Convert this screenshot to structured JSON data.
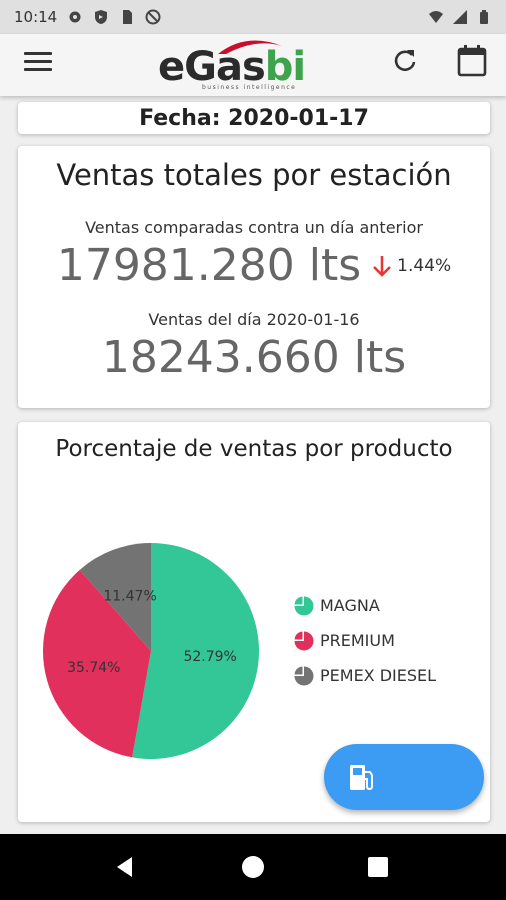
{
  "status_bar": {
    "time": "10:14",
    "left_icons": [
      "gear-icon",
      "shield-icon",
      "sim-icon",
      "dnd-icon"
    ],
    "right_icons": [
      "wifi-icon",
      "signal-icon",
      "battery-icon"
    ]
  },
  "app_bar": {
    "logo_main": "eGas",
    "logo_accent": "bi",
    "logo_tagline": "business intelligence",
    "menu_icon": "menu-icon",
    "refresh_icon": "refresh-icon",
    "calendar_icon": "calendar-icon"
  },
  "date_card": {
    "text": "Fecha: 2020-01-17"
  },
  "sales": {
    "title": "Ventas totales por estación",
    "compare_label": "Ventas comparadas contra un día anterior",
    "current_value": "17981.280 lts",
    "change_pct": "1.44%",
    "change_direction": "down",
    "prev_label": "Ventas del día 2020-01-16",
    "prev_value": "18243.660 lts"
  },
  "product_chart": {
    "title": "Porcentaje de ventas por producto"
  },
  "chart_data": {
    "type": "pie",
    "title": "Porcentaje de ventas por producto",
    "categories": [
      "MAGNA",
      "PREMIUM",
      "PEMEX DIESEL"
    ],
    "values": [
      52.79,
      35.74,
      11.47
    ],
    "labels": [
      "52.79%",
      "35.74%",
      "11.47%"
    ],
    "colors": [
      "#33c797",
      "#e1305b",
      "#737373"
    ],
    "legend": "right"
  },
  "fab": {
    "icon": "gas-pump-icon",
    "color": "#3c9bf2"
  },
  "nav_bar": {
    "icons": [
      "back-icon",
      "home-icon",
      "recent-apps-icon"
    ]
  }
}
